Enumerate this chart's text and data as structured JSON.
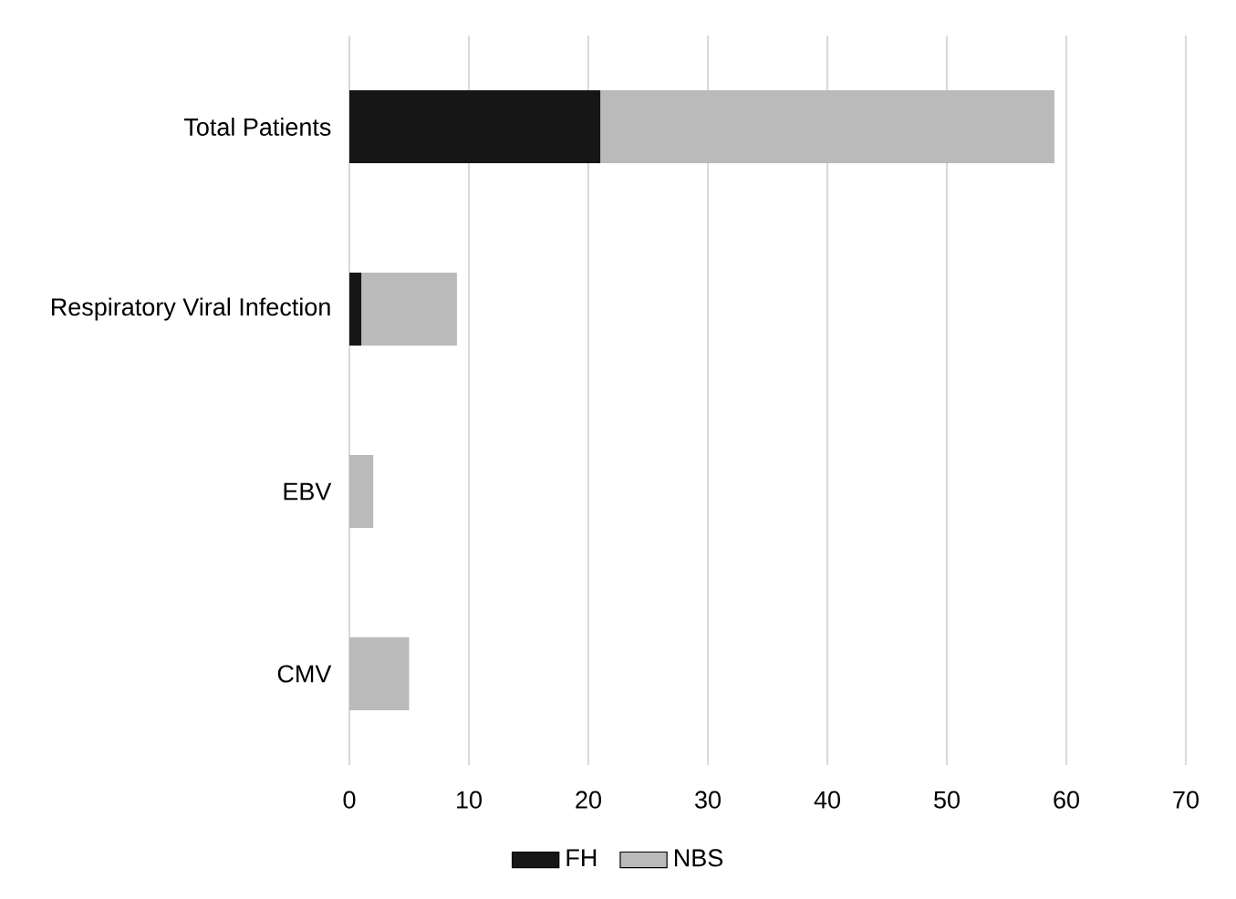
{
  "chart_data": {
    "type": "bar",
    "orientation": "horizontal",
    "stacked": true,
    "categories": [
      "Total Patients",
      "Respiratory Viral Infection",
      "EBV",
      "CMV"
    ],
    "series": [
      {
        "name": "FH",
        "color": "#161616",
        "values": [
          21,
          1,
          0,
          0
        ]
      },
      {
        "name": "NBS",
        "color": "#bababa",
        "values": [
          38,
          8,
          2,
          5
        ]
      }
    ],
    "xlim": [
      0,
      70
    ],
    "xticks": [
      0,
      10,
      20,
      30,
      40,
      50,
      60,
      70
    ],
    "grid": "x",
    "legend": "bottom"
  }
}
